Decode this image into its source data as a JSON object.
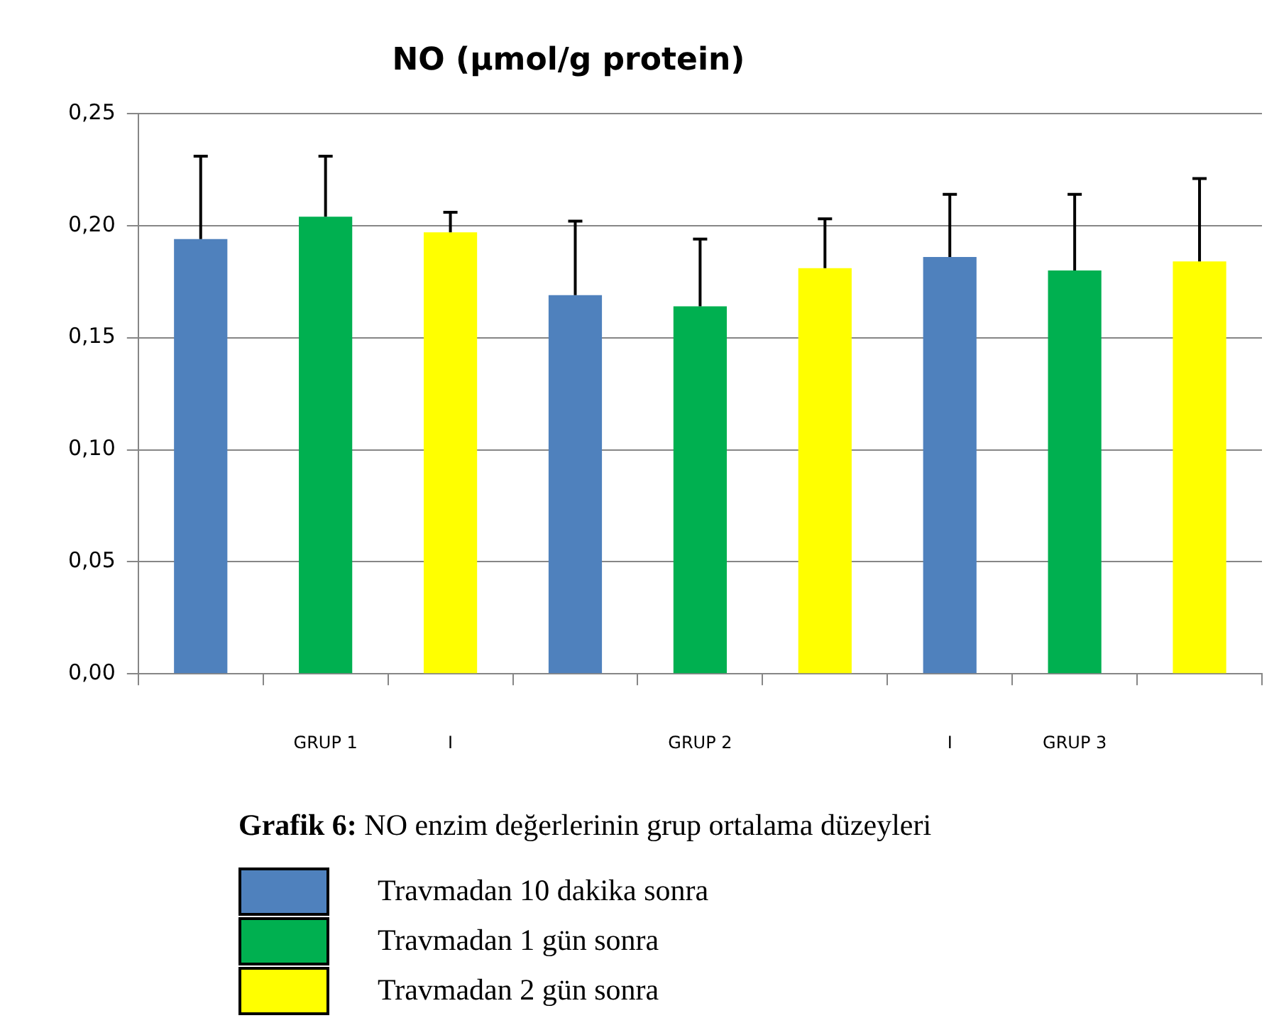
{
  "chart_data": {
    "type": "bar",
    "title": "NO (µmol/g protein)",
    "categories": [
      null,
      "GRUP 1",
      "I",
      null,
      "GRUP 2",
      null,
      "I",
      "GRUP 3",
      null
    ],
    "series": [
      {
        "name": "Travmadan 10 dakika sonra",
        "color": "#4f81bd",
        "values": [
          0.194,
          null,
          null,
          0.169,
          null,
          null,
          0.186,
          null,
          null
        ],
        "errors": [
          [
            0.194,
            0.231
          ],
          null,
          null,
          [
            0.169,
            0.202
          ],
          null,
          null,
          [
            0.186,
            0.214
          ],
          null,
          null
        ]
      },
      {
        "name": "Travmadan 1 gün sonra",
        "color": "#00b050",
        "values": [
          null,
          0.204,
          null,
          null,
          0.164,
          null,
          null,
          0.18,
          null
        ],
        "errors": [
          null,
          [
            0.204,
            0.231
          ],
          null,
          null,
          [
            0.164,
            0.194
          ],
          null,
          null,
          [
            0.18,
            0.214
          ],
          null
        ]
      },
      {
        "name": "Travmadan 2 gün sonra",
        "color": "#ffff00",
        "values": [
          null,
          null,
          0.197,
          null,
          null,
          0.181,
          null,
          null,
          0.184
        ],
        "errors": [
          null,
          null,
          [
            0.197,
            0.206
          ],
          null,
          null,
          [
            0.181,
            0.203
          ],
          null,
          null,
          [
            0.184,
            0.221
          ]
        ]
      }
    ],
    "ylim": [
      0,
      0.25
    ],
    "yticks": [
      {
        "value": 0,
        "label": "0,00"
      },
      {
        "value": 0.05,
        "label": "0,05"
      },
      {
        "value": 0.1,
        "label": "0,10"
      },
      {
        "value": 0.15,
        "label": "0,15"
      },
      {
        "value": 0.2,
        "label": "0,20"
      },
      {
        "value": 0.25,
        "label": "0,25"
      }
    ],
    "grid": "y",
    "legend": "bottom",
    "annotations": [
      "Grafik 6: NO enzim değerlerinin grup ortalama düzeyleri"
    ]
  }
}
